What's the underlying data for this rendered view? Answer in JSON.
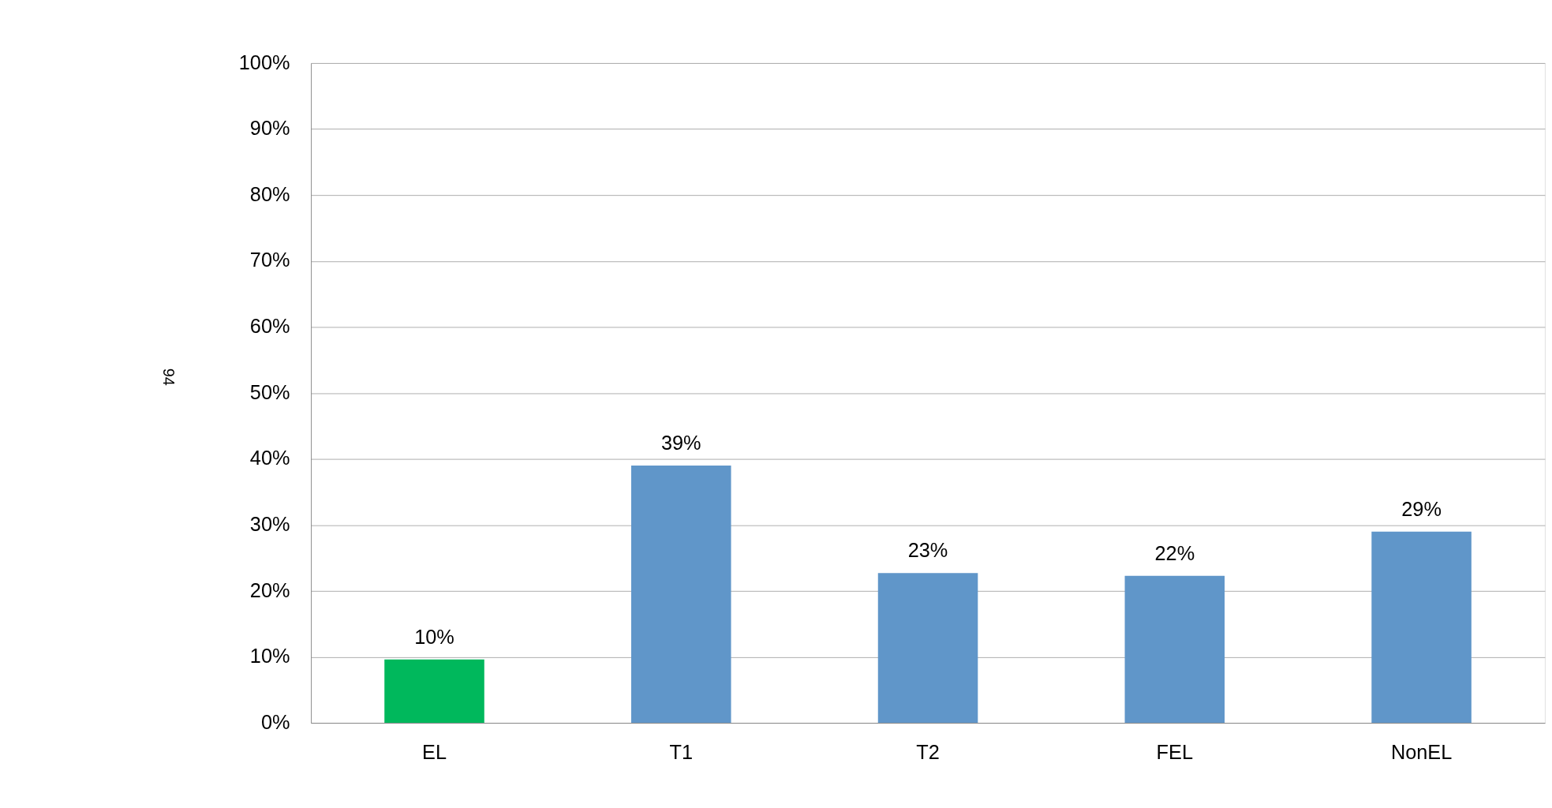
{
  "chart_data": {
    "type": "bar",
    "categories": [
      "EL",
      "T1",
      "T2",
      "FEL",
      "NonEL"
    ],
    "values": [
      9.6,
      39,
      22.7,
      22.3,
      29
    ],
    "value_labels": [
      "10%",
      "39%",
      "23%",
      "22%",
      "29%"
    ],
    "colors": [
      "#00b85c",
      "#6096c9",
      "#6096c9",
      "#6096c9",
      "#6096c9"
    ],
    "ylim": [
      0,
      100
    ],
    "yticks": [
      {
        "value": 0,
        "label": "0%"
      },
      {
        "value": 10,
        "label": "10%"
      },
      {
        "value": 20,
        "label": "20%"
      },
      {
        "value": 30,
        "label": "30%"
      },
      {
        "value": 40,
        "label": "40%"
      },
      {
        "value": 50,
        "label": "50%"
      },
      {
        "value": 60,
        "label": "60%"
      },
      {
        "value": 70,
        "label": "70%"
      },
      {
        "value": 80,
        "label": "80%"
      },
      {
        "value": 90,
        "label": "90%"
      },
      {
        "value": 100,
        "label": "100%"
      }
    ],
    "grid": "y",
    "annotations": [
      "94"
    ]
  }
}
